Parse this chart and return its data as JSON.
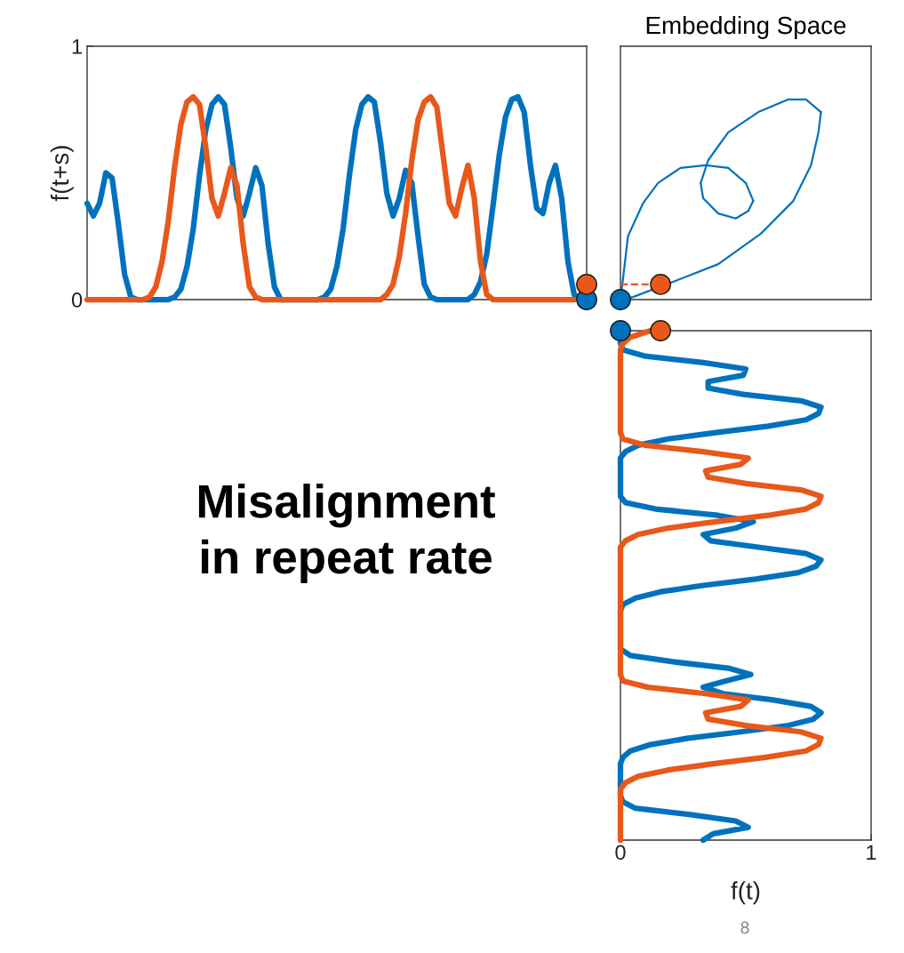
{
  "chart_data": [
    {
      "type": "line",
      "ylabel": "f(t+s)",
      "ylim": [
        0,
        1
      ],
      "yticks": [
        0,
        1
      ],
      "grid": false,
      "categories": [
        null,
        null,
        null,
        null,
        null,
        null,
        null,
        null,
        null,
        null,
        null,
        null,
        null,
        null,
        null,
        null,
        null,
        null,
        null,
        null,
        null,
        null,
        null,
        null,
        null,
        null,
        null,
        null,
        null,
        null,
        null,
        null,
        null,
        null,
        null,
        null,
        null,
        null,
        null,
        null,
        null,
        null,
        null,
        null,
        null,
        null,
        null,
        null,
        null,
        null,
        null,
        null,
        null,
        null,
        null,
        null,
        null,
        null,
        null,
        null,
        null,
        null,
        null,
        null,
        null,
        null,
        null,
        null,
        null,
        null,
        null,
        null,
        null,
        null,
        null,
        null,
        null,
        null,
        null,
        null,
        null
      ],
      "series": [
        {
          "color": "#0072bd",
          "values": [
            0.38,
            0.33,
            0.38,
            0.5,
            0.48,
            0.3,
            0.1,
            0.01,
            0,
            0,
            0,
            0,
            0,
            0,
            0.01,
            0.04,
            0.13,
            0.28,
            0.49,
            0.67,
            0.77,
            0.8,
            0.77,
            0.6,
            0.4,
            0.33,
            0.42,
            0.52,
            0.45,
            0.22,
            0.05,
            0,
            0,
            0,
            0,
            0,
            0,
            0,
            0.01,
            0.04,
            0.13,
            0.28,
            0.49,
            0.67,
            0.77,
            0.8,
            0.78,
            0.62,
            0.42,
            0.33,
            0.4,
            0.51,
            0.46,
            0.25,
            0.06,
            0.01,
            0,
            0,
            0,
            0,
            0,
            0,
            0.02,
            0.07,
            0.18,
            0.37,
            0.57,
            0.72,
            0.79,
            0.8,
            0.74,
            0.53,
            0.36,
            0.34,
            0.46,
            0.53,
            0.4,
            0.15,
            0.02,
            0,
            0
          ]
        },
        {
          "color": "#e8581a",
          "values": [
            0,
            0,
            0,
            0,
            0,
            0,
            0,
            0,
            0,
            0,
            0.01,
            0.05,
            0.15,
            0.31,
            0.52,
            0.69,
            0.78,
            0.8,
            0.77,
            0.6,
            0.4,
            0.33,
            0.42,
            0.52,
            0.45,
            0.22,
            0.05,
            0.01,
            0,
            0,
            0,
            0,
            0,
            0,
            0,
            0,
            0,
            0,
            0,
            0,
            0,
            0,
            0,
            0,
            0,
            0,
            0,
            0,
            0.02,
            0.06,
            0.17,
            0.34,
            0.55,
            0.71,
            0.78,
            0.8,
            0.76,
            0.57,
            0.38,
            0.33,
            0.44,
            0.53,
            0.4,
            0.15,
            0.02,
            0,
            0,
            0,
            0,
            0,
            0,
            0,
            0,
            0,
            0,
            0,
            0,
            0,
            0,
            null,
            null
          ]
        },
        {
          "type": "scatter",
          "marker": "circle",
          "color": "#0072bd",
          "values": [
            null,
            null,
            null,
            null,
            null,
            null,
            null,
            null,
            null,
            null,
            null,
            null,
            null,
            null,
            null,
            null,
            null,
            null,
            null,
            null,
            null,
            null,
            null,
            null,
            null,
            null,
            null,
            null,
            null,
            null,
            null,
            null,
            null,
            null,
            null,
            null,
            null,
            null,
            null,
            null,
            null,
            null,
            null,
            null,
            null,
            null,
            null,
            null,
            null,
            null,
            null,
            null,
            null,
            null,
            null,
            null,
            null,
            null,
            null,
            null,
            null,
            null,
            null,
            null,
            null,
            null,
            null,
            null,
            null,
            null,
            null,
            null,
            null,
            null,
            null,
            null,
            null,
            null,
            null,
            null,
            0
          ]
        },
        {
          "type": "scatter",
          "marker": "circle",
          "color": "#e8581a",
          "values": [
            null,
            null,
            null,
            null,
            null,
            null,
            null,
            null,
            null,
            null,
            null,
            null,
            null,
            null,
            null,
            null,
            null,
            null,
            null,
            null,
            null,
            null,
            null,
            null,
            null,
            null,
            null,
            null,
            null,
            null,
            null,
            null,
            null,
            null,
            null,
            null,
            null,
            null,
            null,
            null,
            null,
            null,
            null,
            null,
            null,
            null,
            null,
            null,
            null,
            null,
            null,
            null,
            null,
            null,
            null,
            null,
            null,
            null,
            null,
            null,
            null,
            null,
            null,
            null,
            null,
            null,
            null,
            null,
            null,
            null,
            null,
            null,
            null,
            null,
            null,
            null,
            null,
            null,
            null,
            null,
            0.06
          ]
        }
      ]
    },
    {
      "type": "line",
      "title": "Embedding Space",
      "xlim": [
        0,
        1
      ],
      "ylim": [
        0,
        1
      ],
      "tick_labels": false,
      "grid": false,
      "series": [
        {
          "color": "#0072bd",
          "x": [
            0,
            0.01,
            0.03,
            0.09,
            0.15,
            0.24,
            0.34,
            0.43,
            0.5,
            0.53
          ],
          "values": [
            0,
            0.08,
            0.25,
            0.38,
            0.46,
            0.52,
            0.53,
            0.52,
            0.46,
            0.39
          ]
        },
        {
          "color": "#0072bd",
          "x": [
            0.53,
            0.51,
            0.46,
            0.39,
            0.33,
            0.32
          ],
          "values": [
            0.39,
            0.35,
            0.32,
            0.34,
            0.4,
            0.46
          ]
        },
        {
          "color": "#0072bd",
          "x": [
            0.32,
            0.35,
            0.43,
            0.55,
            0.67,
            0.74,
            0.8
          ],
          "values": [
            0.46,
            0.55,
            0.66,
            0.74,
            0.79,
            0.79,
            0.74
          ]
        },
        {
          "color": "#0072bd",
          "x": [
            0.8,
            0.79,
            0.76,
            0.69,
            0.56,
            0.39,
            0.21,
            0.05,
            0
          ],
          "values": [
            0.74,
            0.66,
            0.53,
            0.39,
            0.26,
            0.14,
            0.07,
            0.01,
            0
          ]
        },
        {
          "color": "#e8581a",
          "line_style": "dashed",
          "x": [
            0,
            0.16
          ],
          "values": [
            0.06,
            0.06
          ]
        },
        {
          "type": "scatter",
          "marker": "circle",
          "color": "#0072bd",
          "x": [
            0
          ],
          "values": [
            0
          ]
        },
        {
          "type": "scatter",
          "marker": "circle",
          "color": "#e8581a",
          "x": [
            0.16
          ],
          "values": [
            0.06
          ]
        }
      ]
    },
    {
      "type": "line",
      "orientation": "horizontal",
      "xlabel": "f(t)",
      "xlim": [
        0,
        1
      ],
      "xticks": [
        0,
        1
      ],
      "grid": false,
      "categories": [
        null,
        null,
        null,
        null,
        null,
        null,
        null,
        null,
        null,
        null,
        null,
        null,
        null,
        null,
        null,
        null,
        null,
        null,
        null,
        null,
        null,
        null,
        null,
        null,
        null,
        null,
        null,
        null,
        null,
        null,
        null,
        null,
        null,
        null,
        null,
        null,
        null,
        null,
        null,
        null,
        null,
        null,
        null,
        null,
        null,
        null,
        null,
        null,
        null,
        null,
        null,
        null,
        null,
        null,
        null,
        null,
        null,
        null,
        null,
        null,
        null,
        null,
        null,
        null,
        null,
        null,
        null,
        null,
        null,
        null,
        null,
        null,
        null,
        null,
        null,
        null,
        null,
        null,
        null,
        null,
        null
      ],
      "annotations": [
        "Misalignment\nin repeat rate",
        "8"
      ],
      "series": [
        {
          "color": "#0072bd",
          "values": [
            0,
            0,
            0,
            0.01,
            0.1,
            0.33,
            0.5,
            0.49,
            0.35,
            0.35,
            0.49,
            0.72,
            0.8,
            0.79,
            0.74,
            0.59,
            0.38,
            0.19,
            0.07,
            0.02,
            0,
            0,
            0,
            0,
            0,
            0,
            0,
            0.02,
            0.14,
            0.39,
            0.53,
            0.46,
            0.33,
            0.36,
            0.55,
            0.74,
            0.8,
            0.78,
            0.71,
            0.54,
            0.33,
            0.16,
            0.06,
            0.01,
            0,
            0,
            0,
            0,
            0,
            0,
            0,
            0.04,
            0.21,
            0.43,
            0.52,
            0.42,
            0.33,
            0.41,
            0.61,
            0.76,
            0.8,
            0.77,
            0.67,
            0.48,
            0.27,
            0.12,
            0.04,
            0.01,
            0,
            0,
            0,
            0,
            0,
            0,
            0.01,
            0.06,
            0.28,
            0.46,
            0.51,
            0.37,
            0.33
          ]
        },
        {
          "color": "#e8581a",
          "values": [
            0.12,
            0.04,
            0.01,
            0,
            0,
            0,
            0,
            0,
            0,
            0,
            0,
            0,
            0,
            0,
            0,
            0,
            0,
            0.01,
            0.1,
            0.33,
            0.51,
            0.48,
            0.34,
            0.35,
            0.5,
            0.72,
            0.8,
            0.79,
            0.74,
            0.59,
            0.38,
            0.19,
            0.07,
            0.02,
            0,
            0,
            0,
            0,
            0,
            0,
            0,
            0,
            0,
            0,
            0,
            0,
            0,
            0,
            0,
            0,
            0,
            0,
            0,
            0,
            0,
            0.01,
            0.11,
            0.34,
            0.51,
            0.48,
            0.34,
            0.35,
            0.5,
            0.72,
            0.8,
            0.79,
            0.74,
            0.58,
            0.37,
            0.19,
            0.07,
            0.02,
            0,
            0,
            0,
            0,
            0,
            0,
            0,
            0,
            0
          ]
        },
        {
          "type": "scatter",
          "marker": "circle",
          "color": "#0072bd",
          "values": [
            0,
            null,
            null,
            null,
            null,
            null,
            null,
            null,
            null,
            null,
            null,
            null,
            null,
            null,
            null,
            null,
            null,
            null,
            null,
            null,
            null,
            null,
            null,
            null,
            null,
            null,
            null,
            null,
            null,
            null,
            null,
            null,
            null,
            null,
            null,
            null,
            null,
            null,
            null,
            null,
            null,
            null,
            null,
            null,
            null,
            null,
            null,
            null,
            null,
            null,
            null,
            null,
            null,
            null,
            null,
            null,
            null,
            null,
            null,
            null,
            null,
            null,
            null,
            null,
            null,
            null,
            null,
            null,
            null,
            null,
            null,
            null,
            null,
            null,
            null,
            null,
            null,
            null,
            null,
            null,
            null
          ]
        },
        {
          "type": "scatter",
          "marker": "circle",
          "color": "#e8581a",
          "values": [
            0.16,
            null,
            null,
            null,
            null,
            null,
            null,
            null,
            null,
            null,
            null,
            null,
            null,
            null,
            null,
            null,
            null,
            null,
            null,
            null,
            null,
            null,
            null,
            null,
            null,
            null,
            null,
            null,
            null,
            null,
            null,
            null,
            null,
            null,
            null,
            null,
            null,
            null,
            null,
            null,
            null,
            null,
            null,
            null,
            null,
            null,
            null,
            null,
            null,
            null,
            null,
            null,
            null,
            null,
            null,
            null,
            null,
            null,
            null,
            null,
            null,
            null,
            null,
            null,
            null,
            null,
            null,
            null,
            null,
            null,
            null,
            null,
            null,
            null,
            null,
            null,
            null,
            null,
            null,
            null,
            null
          ]
        }
      ]
    }
  ]
}
